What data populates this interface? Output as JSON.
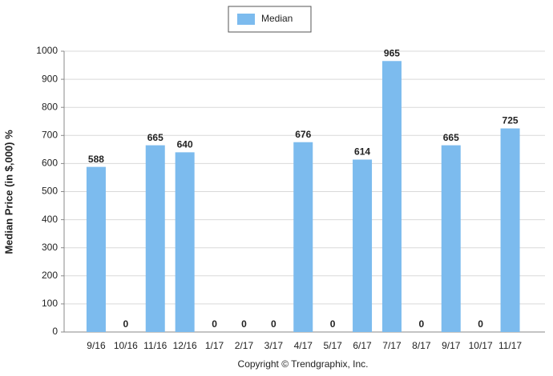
{
  "chart_data": {
    "type": "bar",
    "y_label": "Median Price (in $,000) %",
    "footer": "Copyright © Trendgraphix, Inc.",
    "categories": [
      "9/16",
      "10/16",
      "11/16",
      "12/16",
      "1/17",
      "2/17",
      "3/17",
      "4/17",
      "5/17",
      "6/17",
      "7/17",
      "8/17",
      "9/17",
      "10/17",
      "11/17"
    ],
    "series": [
      {
        "name": "Median",
        "color": "#7cbbee",
        "values": [
          588,
          0,
          665,
          640,
          0,
          0,
          0,
          676,
          0,
          614,
          965,
          0,
          665,
          0,
          725
        ]
      }
    ],
    "ylim": [
      0,
      1000
    ],
    "yticks": [
      0,
      100,
      200,
      300,
      400,
      500,
      600,
      700,
      800,
      900,
      1000
    ],
    "grid": true,
    "legend": "top"
  }
}
